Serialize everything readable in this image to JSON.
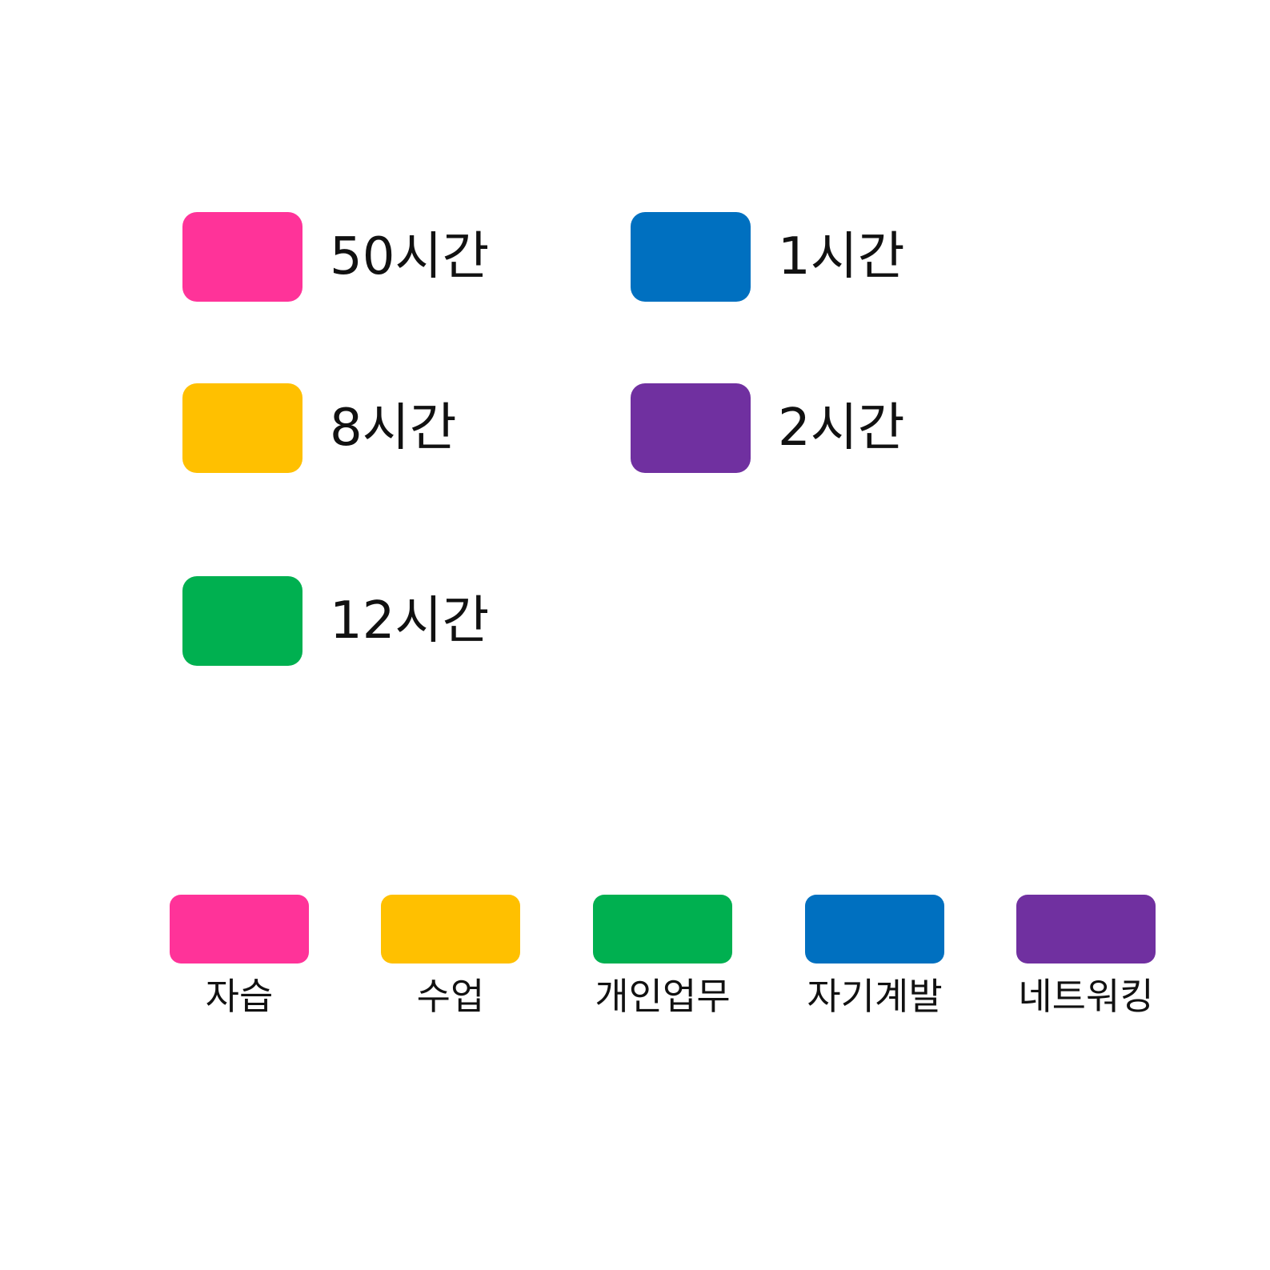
{
  "chart_data": {
    "type": "table",
    "categories": [
      "자습",
      "수업",
      "개인업무",
      "자기계발",
      "네트워킹"
    ],
    "values": [
      50,
      8,
      12,
      1,
      2
    ],
    "value_labels": [
      "50시간",
      "8시간",
      "12시간",
      "1시간",
      "2시간"
    ],
    "colors": [
      "#ff3399",
      "#ffc000",
      "#00b050",
      "#0070c0",
      "#7030a0"
    ],
    "legend_placement": "bottom"
  }
}
